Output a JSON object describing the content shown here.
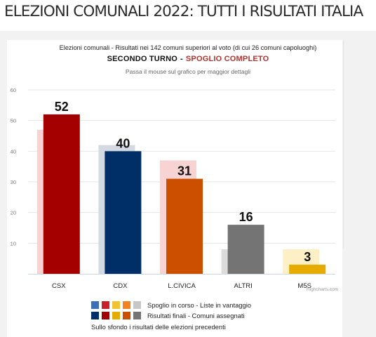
{
  "page": {
    "headline": "ELEZIONI COMUNALI 2022: TUTTI I RISULTATI ITALIA"
  },
  "chart_data": {
    "type": "bar",
    "subtitle": "Elezioni comunali - Risultati nei 142 comuni superiori al voto (di cui 26 comuni capoluoghi)",
    "title_main": "SECONDO TURNO",
    "title_separator": "-",
    "title_status": "SPOGLIO COMPLETO",
    "hint": "Passa il mouse sul grafico per maggior dettagli",
    "categories": [
      "CSX",
      "CDX",
      "L.CIVICA",
      "ALTRI",
      "M5S"
    ],
    "series": [
      {
        "name": "Risultati finali - Comuni assegnati",
        "values": [
          52,
          40,
          31,
          16,
          3
        ]
      },
      {
        "name": "Risultati delle elezioni precedenti",
        "values": [
          47,
          42,
          37,
          8,
          8
        ]
      }
    ],
    "colors": [
      "#a50000",
      "#002f68",
      "#cc4f00",
      "#747474",
      "#e6ab00"
    ],
    "background_colors": [
      "#f8d3d3",
      "#d4dae3",
      "#f8d3d3",
      "#dcdcdc",
      "#fdefc6"
    ],
    "ylim": [
      0,
      60
    ],
    "yticks": [
      10,
      20,
      30,
      40,
      50,
      60
    ],
    "grid": true,
    "credits": "Highcharts.com",
    "legend": {
      "row1_colors": [
        "#3f6fb5",
        "#c9222c",
        "#f1c232",
        "#f58220",
        "#c7c7c7"
      ],
      "row1_text": "Spoglio in corso - Liste in vantaggio",
      "row2_colors": [
        "#002f68",
        "#a50000",
        "#e6ab00",
        "#cc4f00",
        "#747474"
      ],
      "row2_text": "Risultati finali - Comuni assegnati",
      "note": "Sullo sfondo i risultati delle elezioni precedenti"
    }
  }
}
